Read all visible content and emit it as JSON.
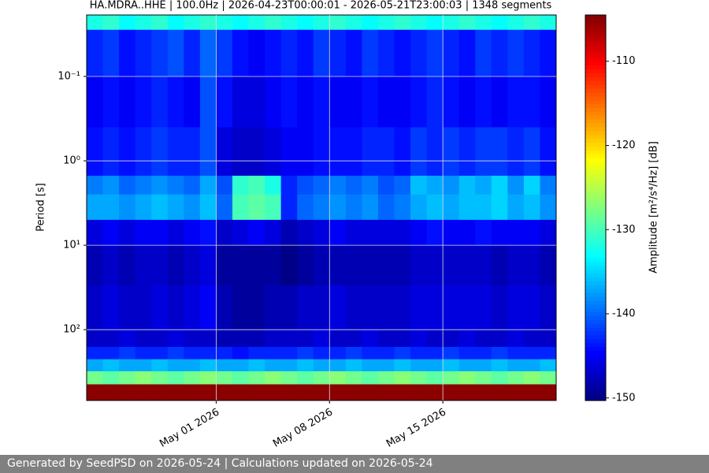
{
  "chart_data": {
    "type": "spectrogram",
    "title": "HA.MDRA..HHE | 100.0Hz | 2026-04-23T00:00:01 - 2026-05-21T23:00:03 | 1348 segments",
    "y_label": "Period [s]",
    "colorbar_label": "Amplitude [m²/s⁴/Hz] [dB]",
    "ylog": true,
    "yinvert": true,
    "grid": true,
    "xlim": [
      "2026-04-23",
      "2026-05-22"
    ],
    "xticks": [
      {
        "value": "2026-05-01",
        "label": "May 01 2026"
      },
      {
        "value": "2026-05-08",
        "label": "May 08 2026"
      },
      {
        "value": "2026-05-15",
        "label": "May 15 2026"
      }
    ],
    "ylim": [
      0.0187,
      690
    ],
    "yticks": [
      {
        "value": 0.1,
        "label": "10⁻¹"
      },
      {
        "value": 1,
        "label": "10⁰"
      },
      {
        "value": 10,
        "label": "10¹"
      },
      {
        "value": 100,
        "label": "10²"
      }
    ],
    "clim": [
      -150.3,
      -104.5
    ],
    "cticks": [
      -150,
      -140,
      -130,
      -120,
      -110
    ],
    "colormap": "jet",
    "x": [
      "2026-04-23",
      "2026-04-24",
      "2026-04-25",
      "2026-04-26",
      "2026-04-27",
      "2026-04-28",
      "2026-04-29",
      "2026-04-30",
      "2026-05-01",
      "2026-05-02",
      "2026-05-03",
      "2026-05-04",
      "2026-05-05",
      "2026-05-06",
      "2026-05-07",
      "2026-05-08",
      "2026-05-09",
      "2026-05-10",
      "2026-05-11",
      "2026-05-12",
      "2026-05-13",
      "2026-05-14",
      "2026-05-15",
      "2026-05-16",
      "2026-05-17",
      "2026-05-18",
      "2026-05-19",
      "2026-05-20",
      "2026-05-21"
    ],
    "y_bins": [
      0.0187,
      0.028,
      0.1,
      0.4,
      1.5,
      2.5,
      5,
      10,
      30,
      100,
      160,
      224,
      311,
      444,
      690
    ],
    "values": [
      [
        -132,
        -131,
        -133,
        -132,
        -131,
        -133,
        -132,
        -131,
        -132,
        -133,
        -132,
        -131,
        -132,
        -133,
        -132,
        -131,
        -132,
        -133,
        -132,
        -131,
        -132,
        -133,
        -132,
        -131,
        -132,
        -133,
        -132,
        -131,
        -132
      ],
      [
        -143,
        -142,
        -144,
        -143,
        -142,
        -141,
        -143,
        -140,
        -142,
        -144,
        -145,
        -144,
        -143,
        -144,
        -142,
        -143,
        -144,
        -142,
        -143,
        -144,
        -143,
        -142,
        -143,
        -144,
        -142,
        -143,
        -142,
        -143,
        -144
      ],
      [
        -145,
        -144,
        -145,
        -144,
        -143,
        -144,
        -145,
        -141,
        -144,
        -146,
        -146,
        -145,
        -144,
        -145,
        -144,
        -145,
        -145,
        -144,
        -145,
        -145,
        -144,
        -143,
        -144,
        -145,
        -144,
        -145,
        -144,
        -144,
        -145
      ],
      [
        -144,
        -143,
        -144,
        -143,
        -142,
        -143,
        -143,
        -141,
        -146,
        -147,
        -147,
        -146,
        -145,
        -145,
        -144,
        -144,
        -144,
        -143,
        -143,
        -144,
        -142,
        -143,
        -142,
        -143,
        -142,
        -142,
        -143,
        -142,
        -144
      ],
      [
        -139,
        -138,
        -140,
        -139,
        -138,
        -139,
        -140,
        -137,
        -141,
        -131,
        -130,
        -132,
        -143,
        -141,
        -140,
        -139,
        -140,
        -139,
        -141,
        -140,
        -136,
        -137,
        -138,
        -136,
        -137,
        -135,
        -138,
        -135,
        -139
      ],
      [
        -137,
        -137,
        -138,
        -137,
        -136,
        -137,
        -138,
        -136,
        -140,
        -130,
        -129,
        -130,
        -143,
        -140,
        -139,
        -138,
        -139,
        -138,
        -140,
        -139,
        -137,
        -136,
        -137,
        -136,
        -136,
        -135,
        -137,
        -136,
        -138
      ],
      [
        -146,
        -145,
        -146,
        -145,
        -145,
        -146,
        -145,
        -144,
        -147,
        -146,
        -145,
        -146,
        -148,
        -147,
        -146,
        -145,
        -146,
        -146,
        -146,
        -146,
        -145,
        -144,
        -145,
        -145,
        -144,
        -145,
        -145,
        -145,
        -146
      ],
      [
        -148,
        -147,
        -148,
        -147,
        -147,
        -148,
        -147,
        -146,
        -149,
        -149,
        -149,
        -149,
        -150,
        -149,
        -148,
        -148,
        -148,
        -148,
        -148,
        -148,
        -147,
        -147,
        -147,
        -147,
        -147,
        -148,
        -147,
        -147,
        -148
      ],
      [
        -147,
        -146,
        -147,
        -147,
        -146,
        -147,
        -146,
        -145,
        -148,
        -149,
        -149,
        -148,
        -148,
        -147,
        -147,
        -146,
        -147,
        -147,
        -147,
        -147,
        -146,
        -146,
        -146,
        -146,
        -146,
        -147,
        -146,
        -146,
        -147
      ],
      [
        -147,
        -147,
        -146,
        -147,
        -147,
        -146,
        -147,
        -147,
        -148,
        -148,
        -148,
        -147,
        -147,
        -147,
        -146,
        -147,
        -147,
        -146,
        -147,
        -147,
        -146,
        -147,
        -147,
        -146,
        -147,
        -147,
        -146,
        -147,
        -147
      ],
      [
        -143,
        -143,
        -142,
        -143,
        -143,
        -142,
        -143,
        -143,
        -143,
        -144,
        -143,
        -143,
        -143,
        -142,
        -143,
        -143,
        -142,
        -143,
        -143,
        -142,
        -143,
        -143,
        -142,
        -143,
        -143,
        -142,
        -143,
        -143,
        -143
      ],
      [
        -137,
        -136,
        -137,
        -137,
        -136,
        -137,
        -137,
        -136,
        -137,
        -137,
        -136,
        -137,
        -137,
        -136,
        -137,
        -137,
        -136,
        -137,
        -137,
        -136,
        -137,
        -137,
        -136,
        -137,
        -137,
        -136,
        -137,
        -137,
        -136
      ],
      [
        -128,
        -129,
        -128,
        -127,
        -128,
        -129,
        -128,
        -127,
        -128,
        -129,
        -128,
        -127,
        -128,
        -129,
        -128,
        -127,
        -128,
        -129,
        -128,
        -127,
        -128,
        -129,
        -128,
        -127,
        -128,
        -129,
        -128,
        -127,
        -128
      ],
      [
        -105,
        -105,
        -105,
        -105,
        -105,
        -105,
        -105,
        -105,
        -105,
        -105,
        -105,
        -105,
        -105,
        -105,
        -105,
        -105,
        -105,
        -105,
        -105,
        -105,
        -105,
        -105,
        -105,
        -105,
        -105,
        -105,
        -105,
        -105,
        -105
      ]
    ]
  },
  "footer": "Generated by SeedPSD on 2026-05-24 | Calculations updated on 2026-05-24"
}
